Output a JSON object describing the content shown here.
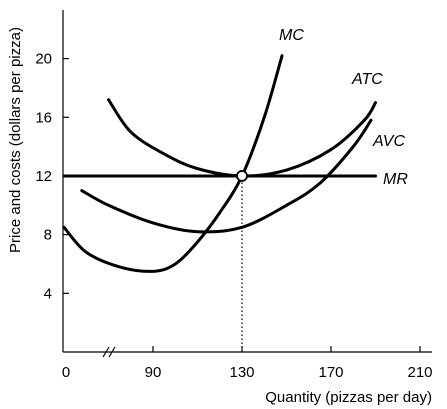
{
  "chart_data": {
    "type": "line",
    "title": "",
    "xlabel": "Quantity (pizzas per day)",
    "ylabel": "Price and costs (dollars per pizza)",
    "x_ticks": [
      {
        "value": 0,
        "label": "0"
      },
      {
        "value": 90,
        "label": "90"
      },
      {
        "value": 130,
        "label": "130"
      },
      {
        "value": 170,
        "label": "170"
      },
      {
        "value": 210,
        "label": "210"
      }
    ],
    "y_ticks": [
      {
        "value": 4,
        "label": "4"
      },
      {
        "value": 8,
        "label": "8"
      },
      {
        "value": 12,
        "label": "12"
      },
      {
        "value": 16,
        "label": "16"
      },
      {
        "value": 20,
        "label": "20"
      }
    ],
    "xlim": [
      0,
      210
    ],
    "ylim": [
      0,
      24
    ],
    "axis_break_on_x": true,
    "grid": false,
    "series": [
      {
        "name": "MC",
        "points": [
          [
            50,
            8.5
          ],
          [
            60,
            6.8
          ],
          [
            75,
            5.8
          ],
          [
            90,
            5.5
          ],
          [
            100,
            6.0
          ],
          [
            110,
            7.5
          ],
          [
            120,
            9.5
          ],
          [
            130,
            12.0
          ],
          [
            140,
            16.0
          ],
          [
            148,
            20.2
          ]
        ]
      },
      {
        "name": "ATC",
        "points": [
          [
            70,
            17.2
          ],
          [
            80,
            15.0
          ],
          [
            95,
            13.5
          ],
          [
            110,
            12.5
          ],
          [
            130,
            12.0
          ],
          [
            150,
            12.4
          ],
          [
            170,
            13.8
          ],
          [
            185,
            15.8
          ],
          [
            190,
            17.0
          ]
        ]
      },
      {
        "name": "AVC",
        "points": [
          [
            58,
            11.0
          ],
          [
            70,
            10.0
          ],
          [
            90,
            8.8
          ],
          [
            110,
            8.2
          ],
          [
            130,
            8.5
          ],
          [
            150,
            10.0
          ],
          [
            165,
            11.5
          ],
          [
            180,
            14.0
          ],
          [
            188,
            15.8
          ]
        ]
      },
      {
        "name": "MR",
        "points": [
          [
            50,
            12.0
          ],
          [
            190,
            12.0
          ]
        ]
      }
    ],
    "highlight_point": {
      "x": 130,
      "y": 12
    },
    "guide_line": {
      "x": 130,
      "from_y": 0,
      "to_y": 12,
      "style": "dotted"
    }
  }
}
